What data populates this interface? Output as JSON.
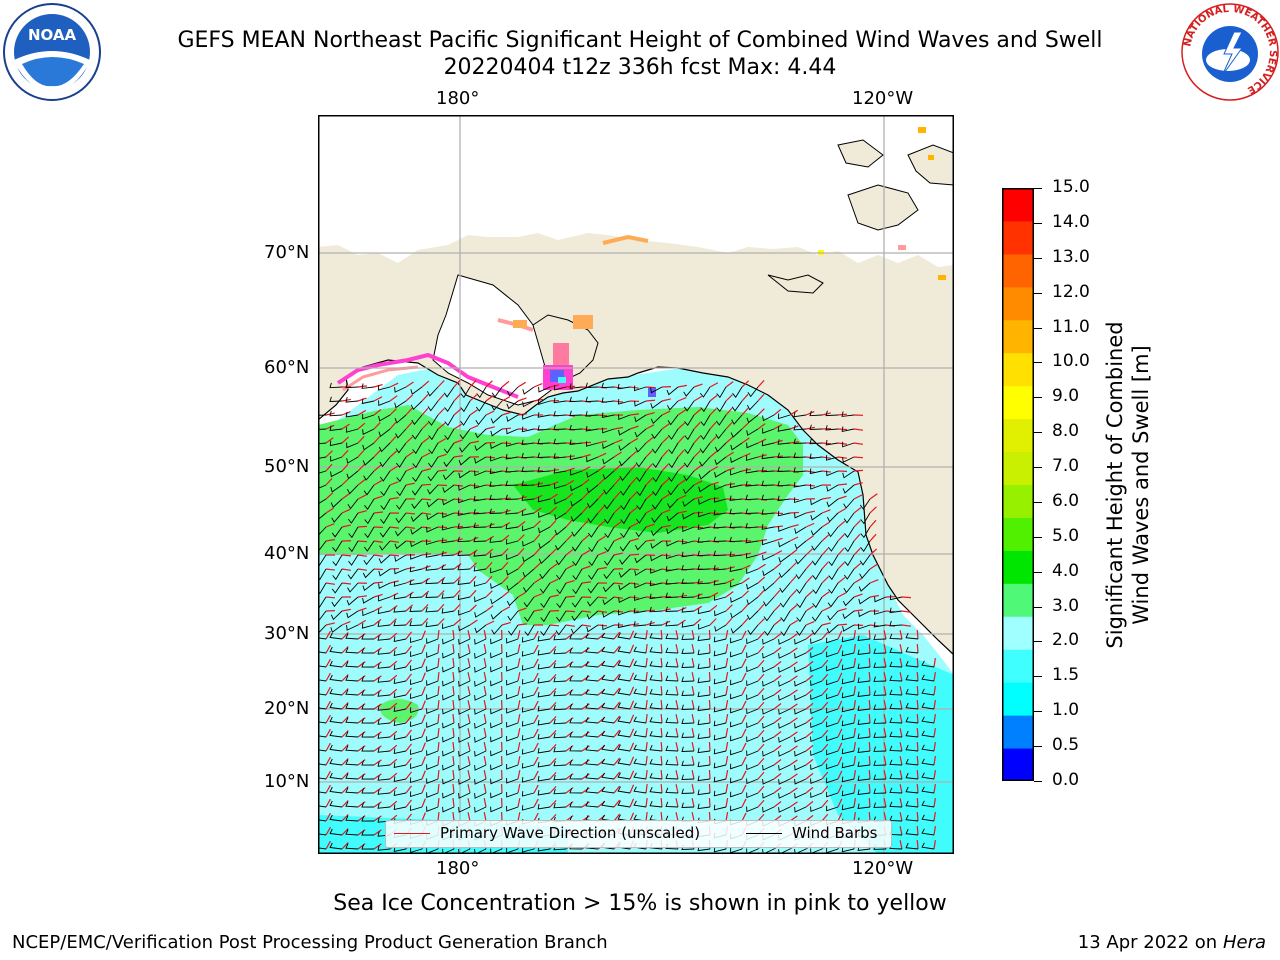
{
  "header": {
    "title_line1": "GEFS MEAN Northeast Pacific Significant Height of Combined Wind Waves and Swell",
    "title_line2": "20220404 t12z 336h fcst   Max: 4.44"
  },
  "logos": {
    "noaa_text": "NOAA",
    "nws_text": "NATIONAL WEATHER SERVICE"
  },
  "map": {
    "lon_labels": [
      "180°",
      "120°W"
    ],
    "lat_labels": [
      "70°N",
      "60°N",
      "50°N",
      "40°N",
      "30°N",
      "20°N",
      "10°N"
    ],
    "colors": {
      "land": "#efebd8",
      "ocean_low": "#9ffcfc",
      "ocean_mid": "#40fcfc",
      "green_band": "#5af56c",
      "green_core": "#16e620",
      "wave_arrow": "#e8141e",
      "barb": "#000000"
    },
    "legend": {
      "wave_label": "Primary Wave Direction (unscaled)",
      "barb_label": "Wind Barbs"
    }
  },
  "colorbar": {
    "ticks": [
      "15.0",
      "14.0",
      "13.0",
      "12.0",
      "11.0",
      "10.0",
      "9.0",
      "8.0",
      "7.0",
      "6.0",
      "5.0",
      "4.0",
      "3.0",
      "2.0",
      "1.5",
      "1.0",
      "0.5",
      "0.0"
    ],
    "label_line1": "Significant Height of Combined",
    "label_line2": "Wind Waves and Swell [m]",
    "colors": [
      "#0000ff",
      "#0080ff",
      "#00ffff",
      "#40ffff",
      "#a0ffff",
      "#50f878",
      "#00e600",
      "#50f000",
      "#96f000",
      "#c8f000",
      "#e0f000",
      "#ffff00",
      "#ffe000",
      "#ffb400",
      "#ff8c00",
      "#ff6400",
      "#ff3200",
      "#ff0000"
    ]
  },
  "caption": "Sea Ice Concentration > 15% is shown in pink to yellow",
  "footer": {
    "left": "NCEP/EMC/Verification Post Processing Product Generation Branch",
    "right_date": "13 Apr 2022 on",
    "right_host": "Hera"
  }
}
